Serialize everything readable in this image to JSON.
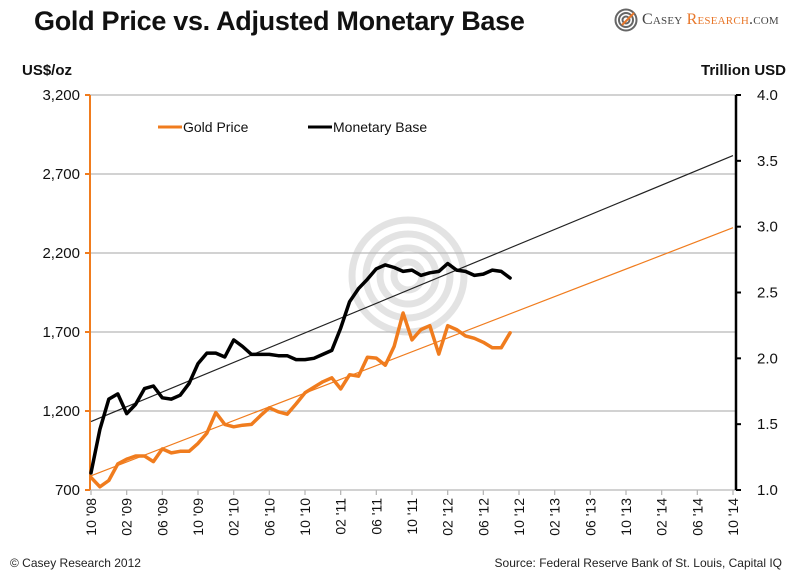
{
  "header": {
    "title": "Gold Price vs. Adjusted Monetary Base",
    "logo_part1": "Casey ",
    "logo_part2": "Research",
    "logo_part3": ".com",
    "logo_icon": "spiral-logo-icon"
  },
  "footer": {
    "copyright": "© Casey Research 2012",
    "source": "Source: Federal Reserve Bank of St. Louis, Capital IQ"
  },
  "colors": {
    "gold": "#f07c1e",
    "base": "#000000",
    "grid": "#b8b8b8",
    "watermark": "#d9d9d9"
  },
  "chart_data": {
    "type": "line",
    "title": "Gold Price vs. Adjusted Monetary Base",
    "ylabel_left": "US$/oz",
    "ylabel_right": "Trillion USD",
    "ylim_left": [
      700,
      3200
    ],
    "ylim_right": [
      1.0,
      4.0
    ],
    "yticks_left": [
      "700",
      "1,200",
      "1,700",
      "2,200",
      "2,700",
      "3,200"
    ],
    "yticks_right": [
      "1.0",
      "1.5",
      "2.0",
      "2.5",
      "3.0",
      "3.5",
      "4.0"
    ],
    "xticks": [
      "10 '08",
      "02 '09",
      "06 '09",
      "10 '09",
      "02 '10",
      "06 '10",
      "10 '10",
      "02 '11",
      "06 '11",
      "10 '11",
      "02 '12",
      "06 '12",
      "10 '12",
      "02 '13",
      "06 '13",
      "10 '13",
      "02 '14",
      "06 '14",
      "10 '14"
    ],
    "x_range_months": 72,
    "x_start": "2008-10",
    "grid": "horizontal",
    "legend": {
      "placement": "top-left",
      "entries": [
        "Gold Price",
        "Monetary Base"
      ]
    },
    "series": [
      {
        "name": "Gold Price",
        "axis": "left",
        "values": [
          780,
          720,
          760,
          865,
          895,
          915,
          915,
          880,
          960,
          935,
          945,
          945,
          995,
          1060,
          1190,
          1115,
          1100,
          1110,
          1115,
          1170,
          1220,
          1195,
          1180,
          1245,
          1315,
          1350,
          1385,
          1410,
          1340,
          1430,
          1420,
          1540,
          1535,
          1490,
          1610,
          1820,
          1650,
          1715,
          1740,
          1560,
          1740,
          1715,
          1675,
          1660,
          1635,
          1600,
          1600,
          1695
        ]
      },
      {
        "name": "Monetary Base",
        "axis": "right",
        "values": [
          1.13,
          1.46,
          1.69,
          1.73,
          1.58,
          1.65,
          1.77,
          1.79,
          1.7,
          1.69,
          1.72,
          1.81,
          1.96,
          2.04,
          2.04,
          2.01,
          2.14,
          2.09,
          2.03,
          2.03,
          2.03,
          2.02,
          2.02,
          1.99,
          1.99,
          2.0,
          2.03,
          2.06,
          2.23,
          2.43,
          2.53,
          2.6,
          2.68,
          2.71,
          2.69,
          2.66,
          2.67,
          2.63,
          2.65,
          2.66,
          2.72,
          2.67,
          2.66,
          2.63,
          2.64,
          2.67,
          2.66,
          2.61
        ]
      }
    ],
    "trendlines": [
      {
        "name": "Gold Price trend",
        "axis": "left",
        "start": [
          0,
          790
        ],
        "end": [
          72,
          2360
        ]
      },
      {
        "name": "Monetary Base trend",
        "axis": "right",
        "start": [
          0,
          1.52
        ],
        "end": [
          72,
          3.54
        ]
      }
    ]
  }
}
